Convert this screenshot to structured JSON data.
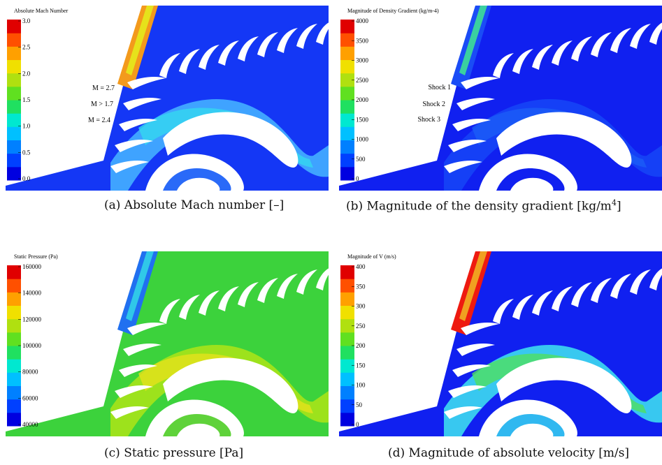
{
  "panels": [
    {
      "colorbar": {
        "title": "Absolute Mach Number",
        "ticks": [
          "0.0",
          "0.5",
          "1.0",
          "1.5",
          "2.0",
          "2.5",
          "3.0"
        ]
      },
      "annotations": [
        "M = 2.7",
        "M > 1.7",
        "M = 2.4"
      ],
      "caption": "(a) Absolute Mach number [–]"
    },
    {
      "colorbar": {
        "title": "Magnitude of Density Gradient (kg/m-4)",
        "ticks": [
          "0",
          "500",
          "1000",
          "1500",
          "2000",
          "2500",
          "3000",
          "3500",
          "4000"
        ]
      },
      "annotations": [
        "Shock 1",
        "Shock 2",
        "Shock 3"
      ],
      "caption": "(b) Magnitude of the density gradient [kg/m",
      "caption_superscript": "4",
      "caption_suffix": "]"
    },
    {
      "colorbar": {
        "title": "Static Pressure (Pa)",
        "ticks": [
          "40000",
          "60000",
          "80000",
          "100000",
          "120000",
          "140000",
          "160000"
        ]
      },
      "annotations": [],
      "caption": "(c) Static pressure [Pa]"
    },
    {
      "colorbar": {
        "title": "Magnitude of V (m/s)",
        "ticks": [
          "0",
          "50",
          "100",
          "150",
          "200",
          "250",
          "300",
          "350",
          "400"
        ]
      },
      "annotations": [],
      "caption": "(d) Magnitude of absolute velocity [m/s]"
    }
  ]
}
